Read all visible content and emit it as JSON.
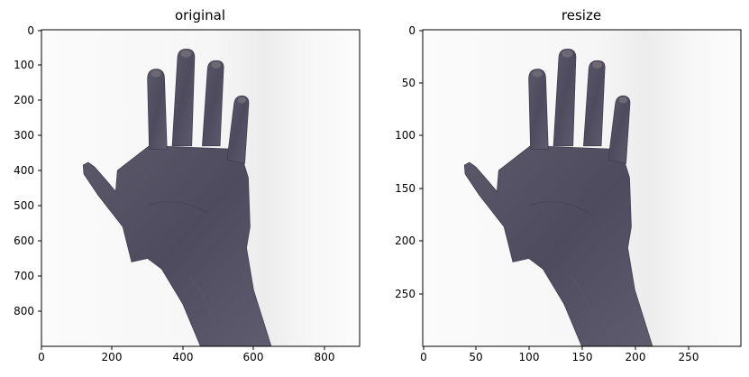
{
  "panels": [
    {
      "title": "original",
      "x_ticks": [
        "0",
        "200",
        "400",
        "600",
        "800"
      ],
      "y_ticks": [
        "0",
        "100",
        "200",
        "300",
        "400",
        "500",
        "600",
        "700",
        "800"
      ]
    },
    {
      "title": "resize",
      "x_ticks": [
        "0",
        "50",
        "100",
        "150",
        "200",
        "250"
      ],
      "y_ticks": [
        "0",
        "50",
        "100",
        "150",
        "200",
        "250"
      ]
    }
  ],
  "colors": {
    "background": "#ffffff",
    "image_background": "#f7f7f7",
    "skin": "#4f4d60",
    "skin_shadow": "#3c3a4b",
    "nail": "#6e6875",
    "axis": "#000000"
  }
}
